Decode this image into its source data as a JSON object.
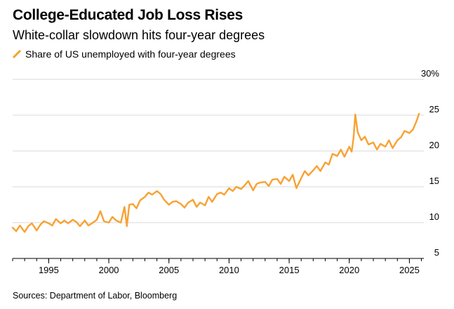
{
  "title": "College-Educated Job Loss Rises",
  "subtitle": "White-collar slowdown hits four-year degrees",
  "source": "Sources: Department of Labor, Bloomberg",
  "colors": {
    "series": "#F7A234",
    "grid": "#D9D9D9",
    "axis": "#000000"
  },
  "chart_data": {
    "type": "line",
    "title": "College-Educated Job Loss Rises",
    "subtitle": "White-collar slowdown hits four-year degrees",
    "xlabel": "",
    "ylabel": "",
    "xlim": [
      1992,
      2026.2
    ],
    "ylim": [
      5,
      30
    ],
    "y_unit": "%",
    "x_ticks": [
      "1995",
      "2000",
      "2005",
      "2010",
      "2015",
      "2020",
      "2025"
    ],
    "y_ticks": [
      "30%",
      "25",
      "20",
      "15",
      "10",
      "5"
    ],
    "grid": "horizontal",
    "legend": "top-left",
    "series": [
      {
        "name": "Share of US unemployed with four-year degrees",
        "color": "#F7A234",
        "x": [
          1992.0,
          1992.3,
          1992.6,
          1993.0,
          1993.3,
          1993.6,
          1994.0,
          1994.3,
          1994.6,
          1995.0,
          1995.3,
          1995.6,
          1996.0,
          1996.3,
          1996.6,
          1997.0,
          1997.3,
          1997.6,
          1998.0,
          1998.3,
          1998.6,
          1999.0,
          1999.3,
          1999.6,
          2000.0,
          2000.3,
          2000.6,
          2001.0,
          2001.3,
          2001.5,
          2001.7,
          2002.0,
          2002.3,
          2002.6,
          2003.0,
          2003.3,
          2003.6,
          2004.0,
          2004.3,
          2004.6,
          2005.0,
          2005.3,
          2005.6,
          2006.0,
          2006.3,
          2006.6,
          2007.0,
          2007.3,
          2007.6,
          2008.0,
          2008.3,
          2008.6,
          2009.0,
          2009.3,
          2009.6,
          2010.0,
          2010.3,
          2010.6,
          2011.0,
          2011.3,
          2011.6,
          2012.0,
          2012.3,
          2012.6,
          2013.0,
          2013.3,
          2013.6,
          2014.0,
          2014.3,
          2014.6,
          2015.0,
          2015.3,
          2015.6,
          2016.0,
          2016.3,
          2016.6,
          2017.0,
          2017.3,
          2017.6,
          2018.0,
          2018.3,
          2018.6,
          2019.0,
          2019.3,
          2019.6,
          2020.0,
          2020.2,
          2020.35,
          2020.5,
          2020.7,
          2021.0,
          2021.3,
          2021.6,
          2022.0,
          2022.3,
          2022.6,
          2023.0,
          2023.3,
          2023.6,
          2024.0,
          2024.3,
          2024.6,
          2025.0,
          2025.3,
          2025.6,
          2025.8
        ],
        "values": [
          9.3,
          8.8,
          9.6,
          8.7,
          9.5,
          9.9,
          8.9,
          9.7,
          10.2,
          9.9,
          9.6,
          10.5,
          9.9,
          10.3,
          9.9,
          10.4,
          10.1,
          9.5,
          10.3,
          9.6,
          9.9,
          10.4,
          11.6,
          10.2,
          10.0,
          10.8,
          10.3,
          10.0,
          12.2,
          9.5,
          12.5,
          12.6,
          12.0,
          13.1,
          13.6,
          14.2,
          13.9,
          14.4,
          14.0,
          13.2,
          12.5,
          12.9,
          13.0,
          12.6,
          12.1,
          12.8,
          13.2,
          12.2,
          12.8,
          12.4,
          13.6,
          12.9,
          14.0,
          14.2,
          13.9,
          14.8,
          14.4,
          15.0,
          14.7,
          15.2,
          15.8,
          14.5,
          15.4,
          15.6,
          15.7,
          15.1,
          16.0,
          16.1,
          15.4,
          16.4,
          15.8,
          16.7,
          14.8,
          16.2,
          17.2,
          16.6,
          17.3,
          17.9,
          17.2,
          18.4,
          18.1,
          19.6,
          19.3,
          20.2,
          19.2,
          20.6,
          19.9,
          21.8,
          25.1,
          22.6,
          21.5,
          22.0,
          20.9,
          21.2,
          20.2,
          21.0,
          20.6,
          21.5,
          20.4,
          21.5,
          21.9,
          22.8,
          22.5,
          23.0,
          24.2,
          25.2
        ]
      }
    ]
  }
}
